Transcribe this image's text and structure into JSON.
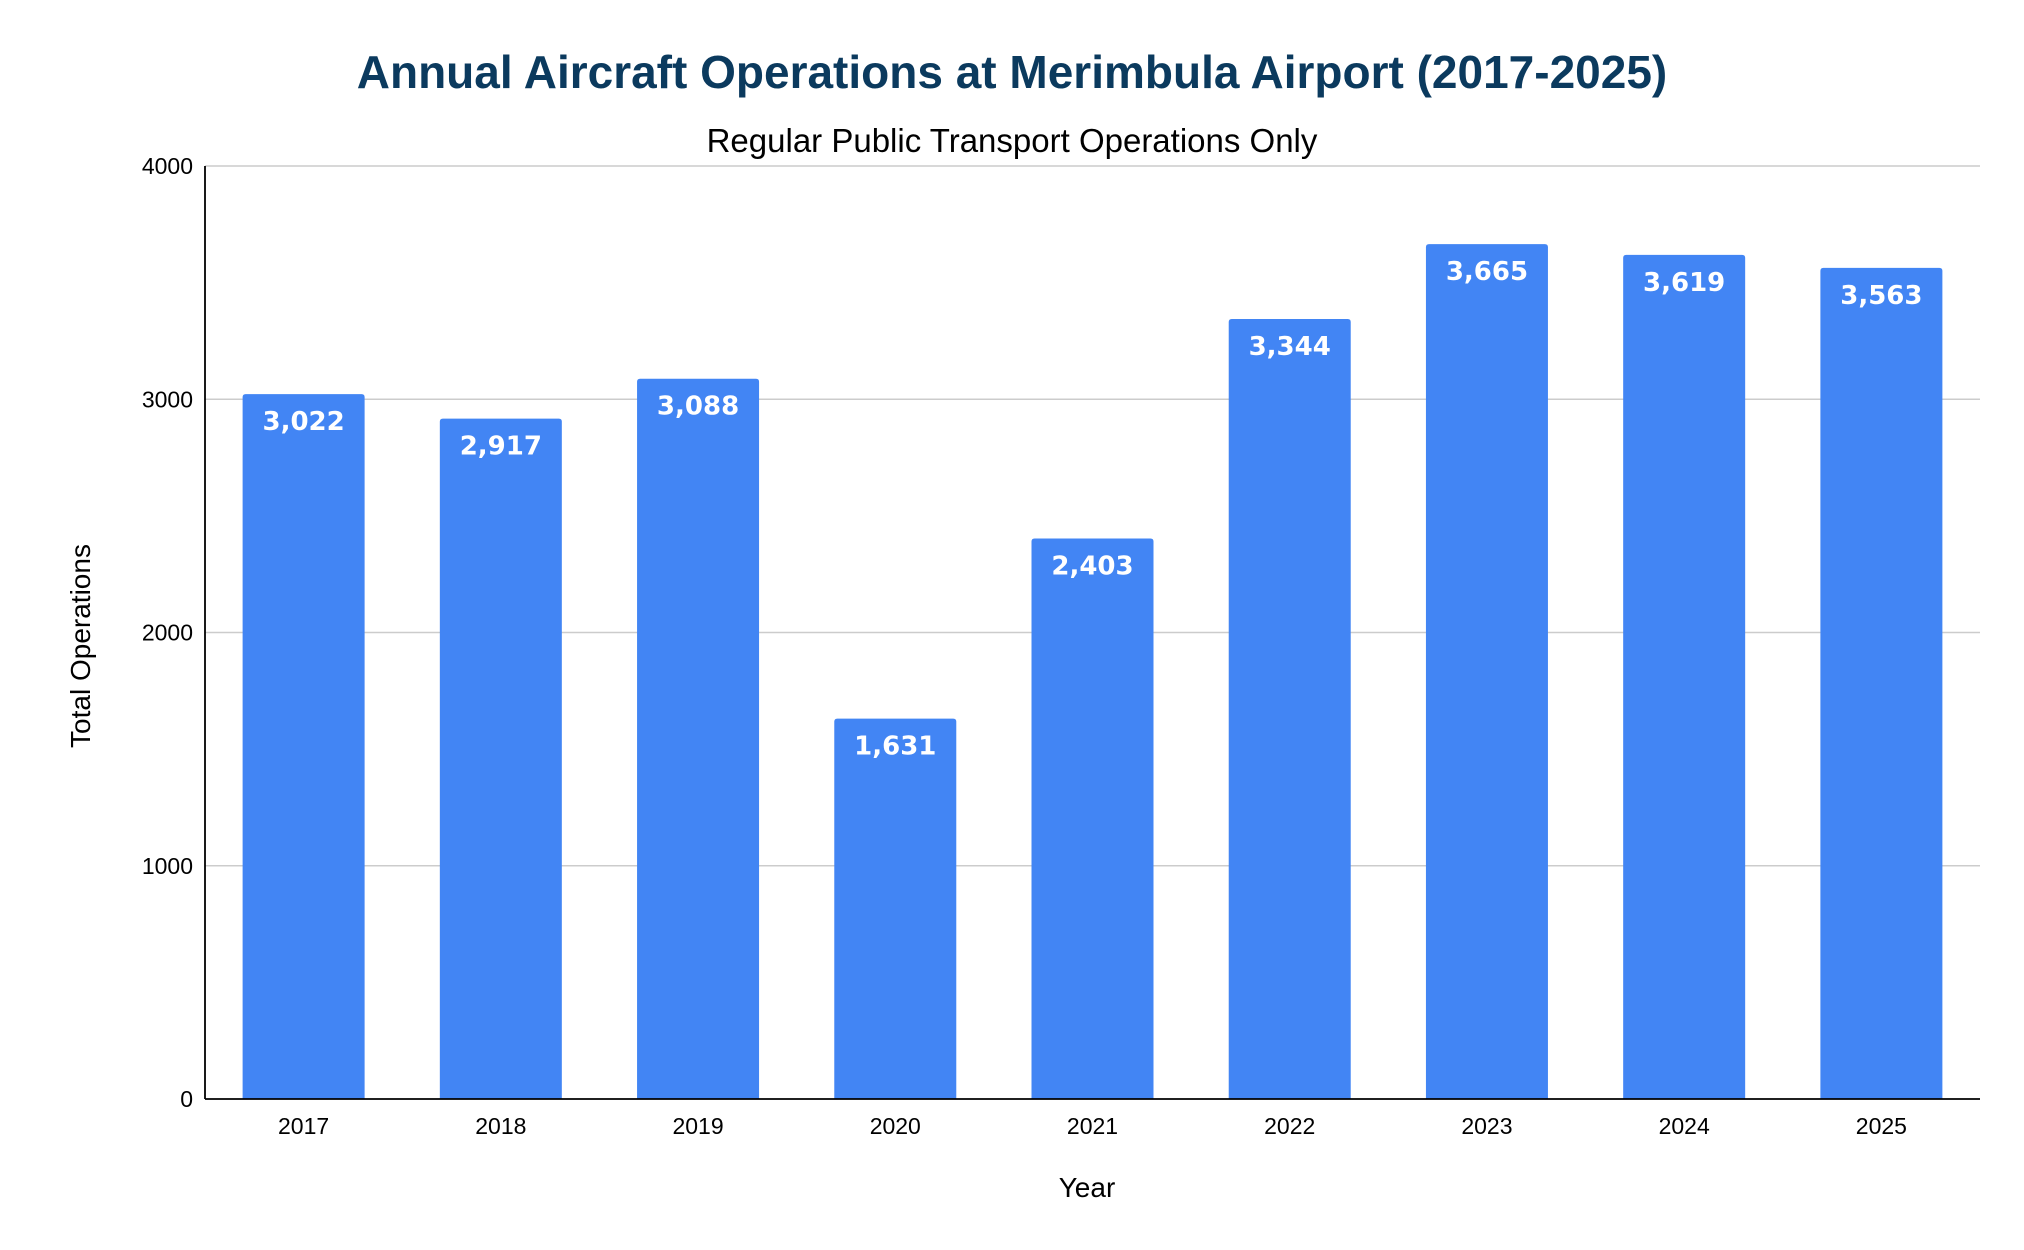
{
  "chart_data": {
    "type": "bar",
    "title": "Annual Aircraft Operations at Merimbula Airport (2017-2025)",
    "subtitle": "Regular Public Transport Operations Only",
    "xlabel": "Year",
    "ylabel": "Total Operations",
    "categories": [
      "2017",
      "2018",
      "2019",
      "2020",
      "2021",
      "2022",
      "2023",
      "2024",
      "2025"
    ],
    "values": [
      3022,
      2917,
      3088,
      1631,
      2403,
      3344,
      3665,
      3619,
      3563
    ],
    "data_labels": [
      "3,022",
      "2,917",
      "3,088",
      "1,631",
      "2,403",
      "3,344",
      "3,665",
      "3,619",
      "3,563"
    ],
    "ylim": [
      0,
      4000
    ],
    "yticks": [
      "0",
      "1000",
      "2000",
      "3000",
      "4000"
    ],
    "grid": true,
    "legend": "none",
    "colors": {
      "bar": "#4285f4",
      "title": "#0b3a5e",
      "grid": "#cccccc",
      "data_label": "#ffffff"
    }
  }
}
